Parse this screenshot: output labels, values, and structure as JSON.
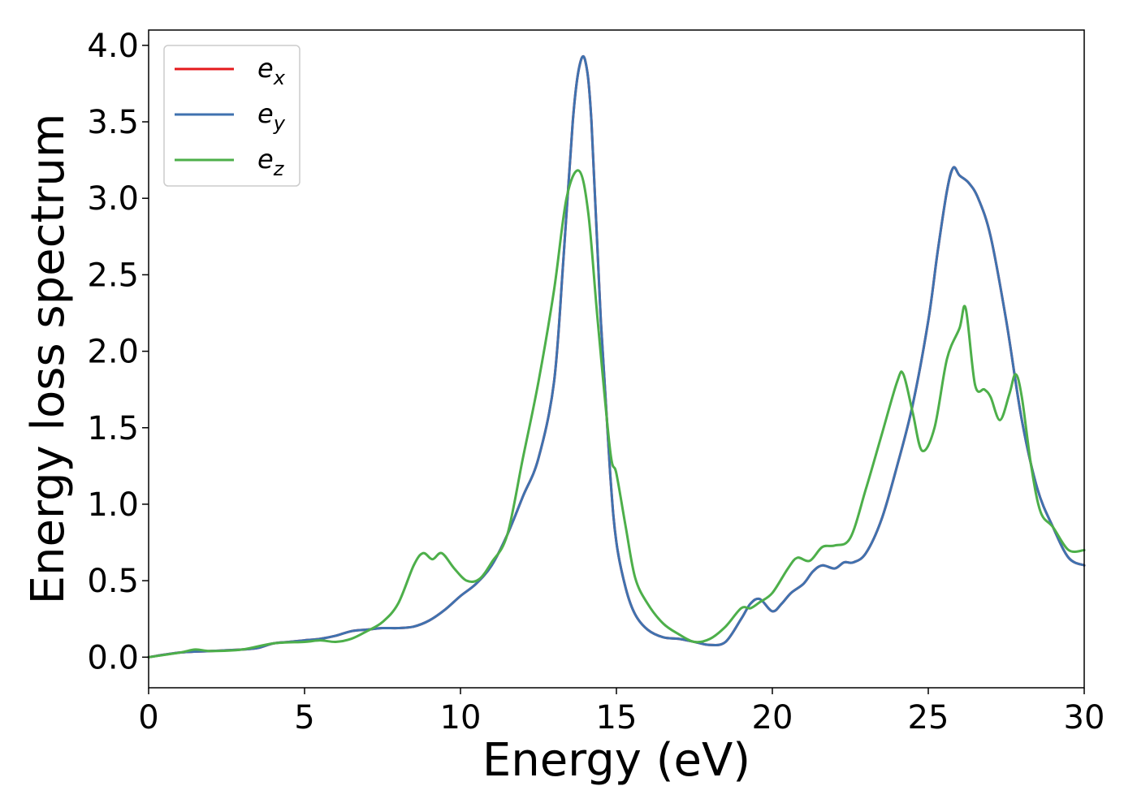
{
  "chart_data": {
    "type": "line",
    "title": "",
    "xlabel": "Energy (eV)",
    "ylabel": "Energy loss spectrum",
    "xlim": [
      0,
      30
    ],
    "ylim": [
      -0.2,
      4.1
    ],
    "xticks": [
      0,
      5,
      10,
      15,
      20,
      25,
      30
    ],
    "yticks": [
      0.0,
      0.5,
      1.0,
      1.5,
      2.0,
      2.5,
      3.0,
      3.5,
      4.0
    ],
    "grid": false,
    "legend_position": "top-left",
    "series": [
      {
        "name": "e_x",
        "label_main": "e",
        "label_sub": "x",
        "color": "#e41a1c",
        "x": [
          0,
          1,
          2,
          3,
          3.5,
          4,
          4.5,
          5,
          5.5,
          6,
          6.5,
          7,
          7.5,
          8,
          8.5,
          9,
          9.5,
          10,
          10.5,
          11,
          11.5,
          12,
          12.5,
          13,
          13.3,
          13.6,
          13.8,
          14,
          14.2,
          14.5,
          14.8,
          15,
          15.3,
          15.6,
          16,
          16.5,
          17,
          17.5,
          18,
          18.5,
          19,
          19.3,
          19.6,
          20,
          20.3,
          20.6,
          21,
          21.3,
          21.6,
          22,
          22.3,
          22.6,
          23,
          23.5,
          24,
          24.5,
          25,
          25.3,
          25.6,
          25.8,
          26,
          26.3,
          26.6,
          27,
          27.5,
          28,
          28.5,
          29,
          29.5,
          30
        ],
        "values": [
          0.0,
          0.03,
          0.04,
          0.05,
          0.06,
          0.09,
          0.1,
          0.11,
          0.12,
          0.14,
          0.17,
          0.18,
          0.19,
          0.19,
          0.2,
          0.24,
          0.31,
          0.4,
          0.48,
          0.6,
          0.8,
          1.05,
          1.3,
          1.8,
          2.6,
          3.5,
          3.85,
          3.9,
          3.5,
          2.2,
          1.2,
          0.75,
          0.45,
          0.28,
          0.18,
          0.13,
          0.12,
          0.1,
          0.08,
          0.1,
          0.25,
          0.35,
          0.38,
          0.3,
          0.35,
          0.42,
          0.48,
          0.56,
          0.6,
          0.58,
          0.62,
          0.62,
          0.68,
          0.9,
          1.25,
          1.65,
          2.2,
          2.65,
          3.05,
          3.2,
          3.15,
          3.1,
          3.0,
          2.75,
          2.2,
          1.55,
          1.1,
          0.85,
          0.65,
          0.6
        ]
      },
      {
        "name": "e_y",
        "label_main": "e",
        "label_sub": "y",
        "color": "#3f72af",
        "x": [
          0,
          1,
          2,
          3,
          3.5,
          4,
          4.5,
          5,
          5.5,
          6,
          6.5,
          7,
          7.5,
          8,
          8.5,
          9,
          9.5,
          10,
          10.5,
          11,
          11.5,
          12,
          12.5,
          13,
          13.3,
          13.6,
          13.8,
          14,
          14.2,
          14.5,
          14.8,
          15,
          15.3,
          15.6,
          16,
          16.5,
          17,
          17.5,
          18,
          18.5,
          19,
          19.3,
          19.6,
          20,
          20.3,
          20.6,
          21,
          21.3,
          21.6,
          22,
          22.3,
          22.6,
          23,
          23.5,
          24,
          24.5,
          25,
          25.3,
          25.6,
          25.8,
          26,
          26.3,
          26.6,
          27,
          27.5,
          28,
          28.5,
          29,
          29.5,
          30
        ],
        "values": [
          0.0,
          0.03,
          0.04,
          0.05,
          0.06,
          0.09,
          0.1,
          0.11,
          0.12,
          0.14,
          0.17,
          0.18,
          0.19,
          0.19,
          0.2,
          0.24,
          0.31,
          0.4,
          0.48,
          0.6,
          0.8,
          1.05,
          1.3,
          1.8,
          2.6,
          3.5,
          3.85,
          3.9,
          3.5,
          2.2,
          1.2,
          0.75,
          0.45,
          0.28,
          0.18,
          0.13,
          0.12,
          0.1,
          0.08,
          0.1,
          0.25,
          0.35,
          0.38,
          0.3,
          0.35,
          0.42,
          0.48,
          0.56,
          0.6,
          0.58,
          0.62,
          0.62,
          0.68,
          0.9,
          1.25,
          1.65,
          2.2,
          2.65,
          3.05,
          3.2,
          3.15,
          3.1,
          3.0,
          2.75,
          2.2,
          1.55,
          1.1,
          0.85,
          0.65,
          0.6
        ]
      },
      {
        "name": "e_z",
        "label_main": "e",
        "label_sub": "z",
        "color": "#4daf4a",
        "x": [
          0,
          1,
          1.5,
          2,
          3,
          4,
          5,
          5.5,
          6,
          6.5,
          7,
          7.5,
          8,
          8.5,
          8.8,
          9.1,
          9.4,
          9.8,
          10.2,
          10.6,
          11,
          11.5,
          12,
          12.5,
          13,
          13.4,
          13.8,
          14.1,
          14.4,
          14.8,
          15,
          15.3,
          15.6,
          16,
          16.5,
          17,
          17.5,
          18,
          18.5,
          19,
          19.3,
          19.6,
          20,
          20.5,
          20.8,
          21.2,
          21.6,
          22,
          22.5,
          23,
          23.5,
          24,
          24.2,
          24.5,
          24.8,
          25.2,
          25.6,
          26,
          26.2,
          26.5,
          26.8,
          27,
          27.3,
          27.6,
          27.8,
          28,
          28.3,
          28.6,
          29,
          29.5,
          30
        ],
        "values": [
          0.0,
          0.03,
          0.05,
          0.04,
          0.05,
          0.09,
          0.1,
          0.11,
          0.1,
          0.12,
          0.17,
          0.23,
          0.35,
          0.6,
          0.68,
          0.64,
          0.68,
          0.58,
          0.5,
          0.51,
          0.62,
          0.8,
          1.3,
          1.8,
          2.4,
          3.0,
          3.18,
          2.9,
          2.2,
          1.35,
          1.2,
          0.85,
          0.52,
          0.35,
          0.22,
          0.15,
          0.1,
          0.12,
          0.2,
          0.32,
          0.32,
          0.36,
          0.42,
          0.58,
          0.65,
          0.63,
          0.72,
          0.73,
          0.78,
          1.1,
          1.45,
          1.8,
          1.85,
          1.6,
          1.35,
          1.5,
          1.95,
          2.15,
          2.28,
          1.78,
          1.75,
          1.7,
          1.55,
          1.72,
          1.85,
          1.7,
          1.25,
          0.95,
          0.85,
          0.7,
          0.7
        ]
      }
    ]
  }
}
